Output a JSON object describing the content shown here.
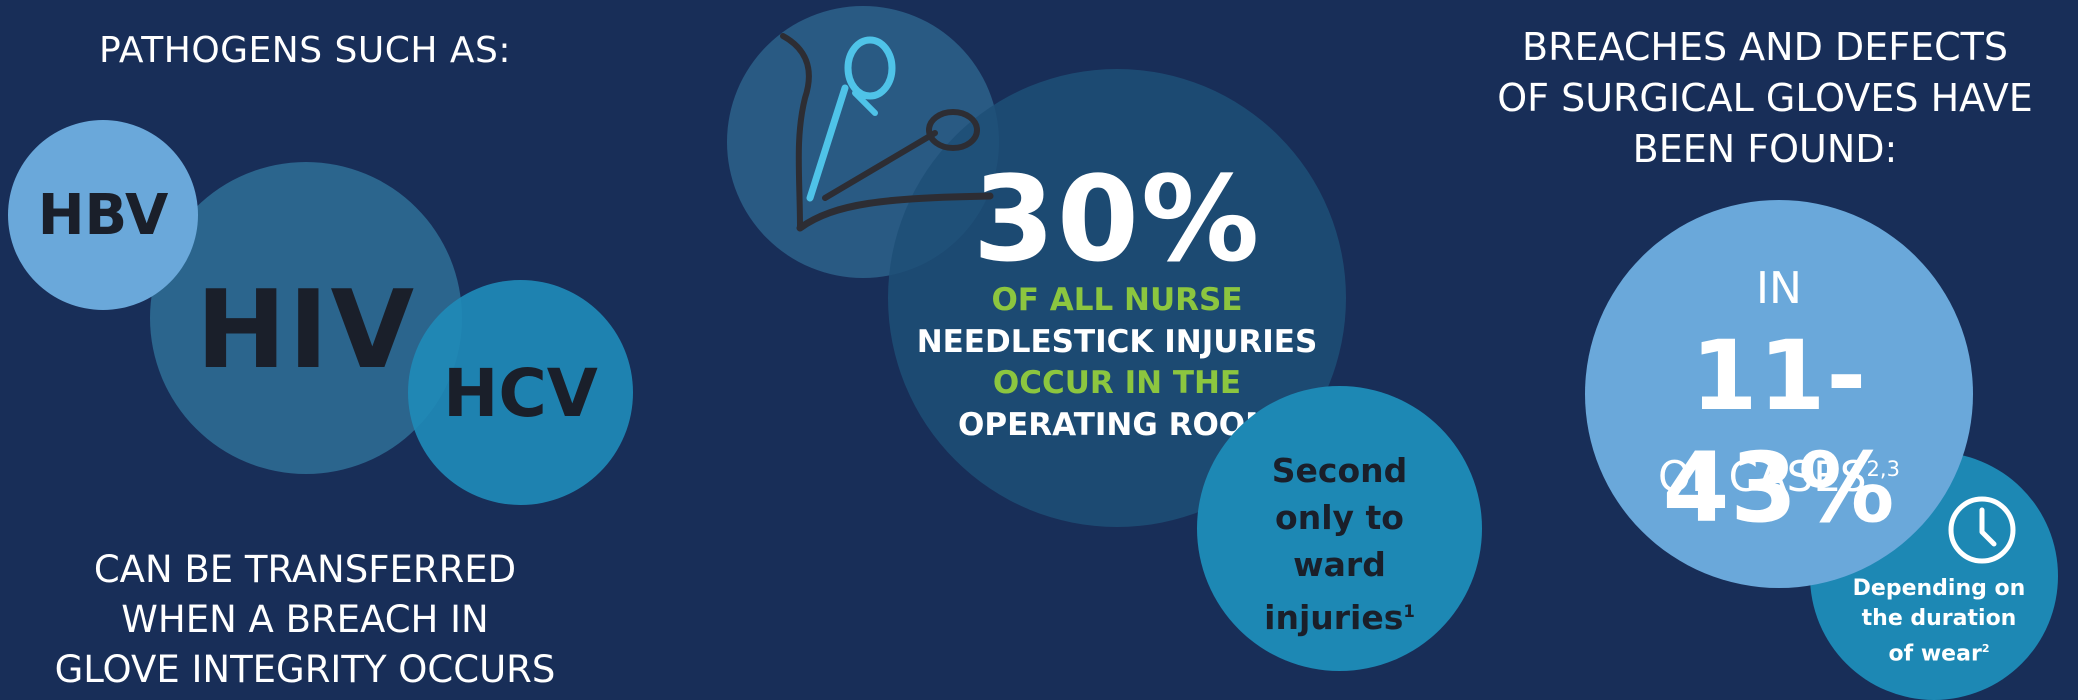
{
  "left": {
    "title": "PATHOGENS SUCH AS:",
    "pathogens": [
      "HBV",
      "HIV",
      "HCV"
    ],
    "footer_lines": [
      "CAN BE TRANSFERRED",
      "WHEN A BREACH IN",
      "GLOVE INTEGRITY OCCURS"
    ]
  },
  "middle": {
    "stat": "30%",
    "lines": [
      "OF ALL NURSE",
      "NEEDLESTICK INJURIES",
      "OCCUR IN THE",
      "OPERATING ROOM"
    ],
    "second_lines": [
      "Second",
      "only to",
      "ward",
      "injuries"
    ],
    "second_ref": "1"
  },
  "right": {
    "title_lines": [
      "BREACHES AND DEFECTS",
      "OF SURGICAL GLOVES HAVE",
      "BEEN FOUND:"
    ],
    "in_label": "IN",
    "percent": "11-43%",
    "cases_label": "OF CASES",
    "cases_ref": "2,3",
    "duration_lines": [
      "Depending on",
      "the duration",
      "of wear"
    ],
    "duration_ref": "2"
  },
  "colors": {
    "background": "#182e58",
    "light_blue": "#6aa8da",
    "teal": "#1d88b4",
    "green": "#8cc63f",
    "icon_cyan": "#4fc3e8"
  },
  "icons": [
    "surgical-scissors-icon",
    "suture-needle-icon",
    "clock-icon"
  ]
}
